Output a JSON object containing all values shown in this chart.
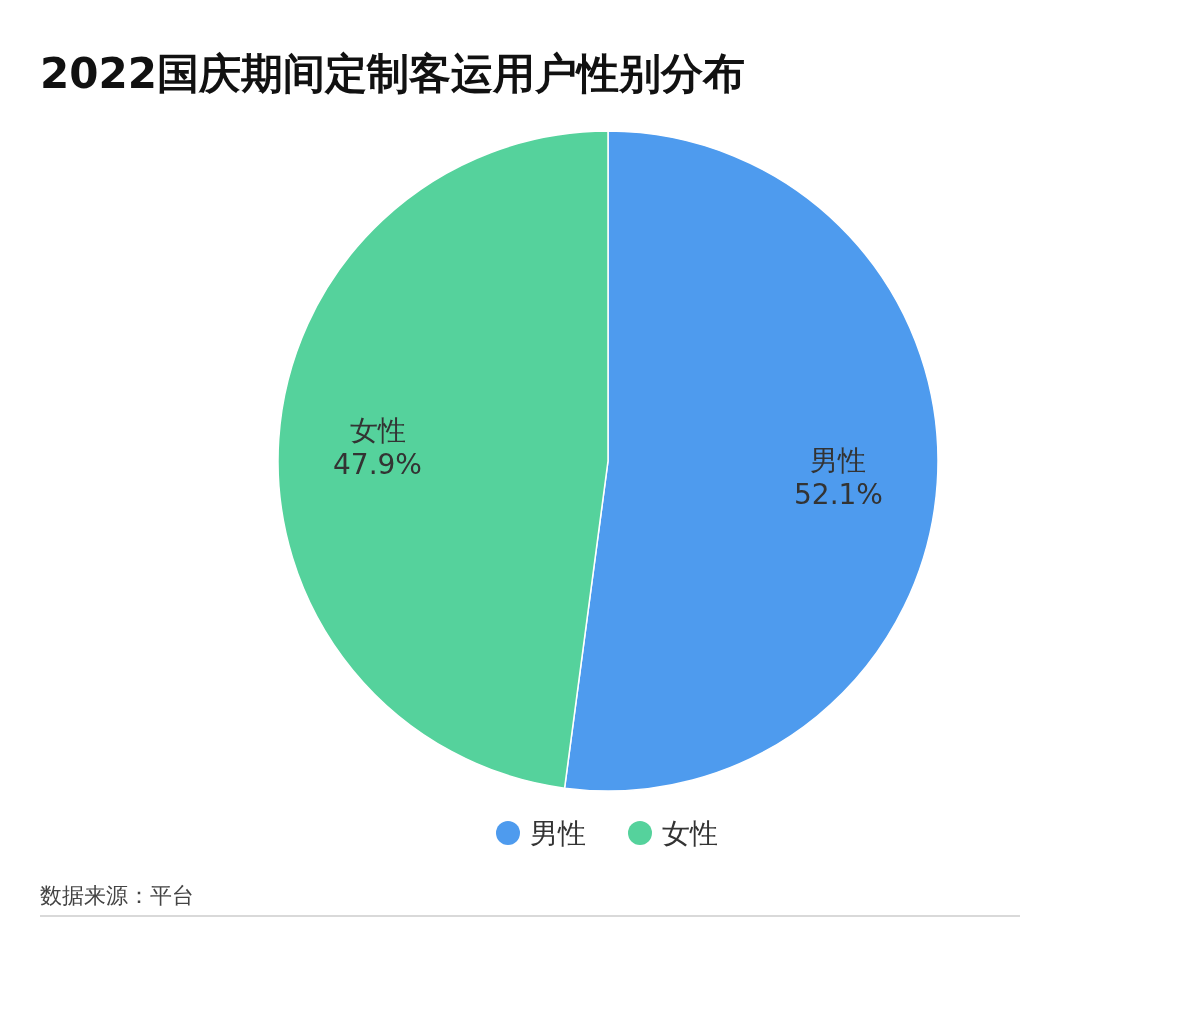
{
  "chart_data": {
    "type": "pie",
    "title": "2022国庆期间定制客运用户性别分布",
    "categories": [
      "男性",
      "女性"
    ],
    "values": [
      52.1,
      47.9
    ],
    "colors": [
      "#4e9bee",
      "#55d29c"
    ],
    "value_labels": [
      "52.1%",
      "47.9%"
    ],
    "legend": "bottom",
    "annotations": [
      "数据来源：平台"
    ]
  }
}
